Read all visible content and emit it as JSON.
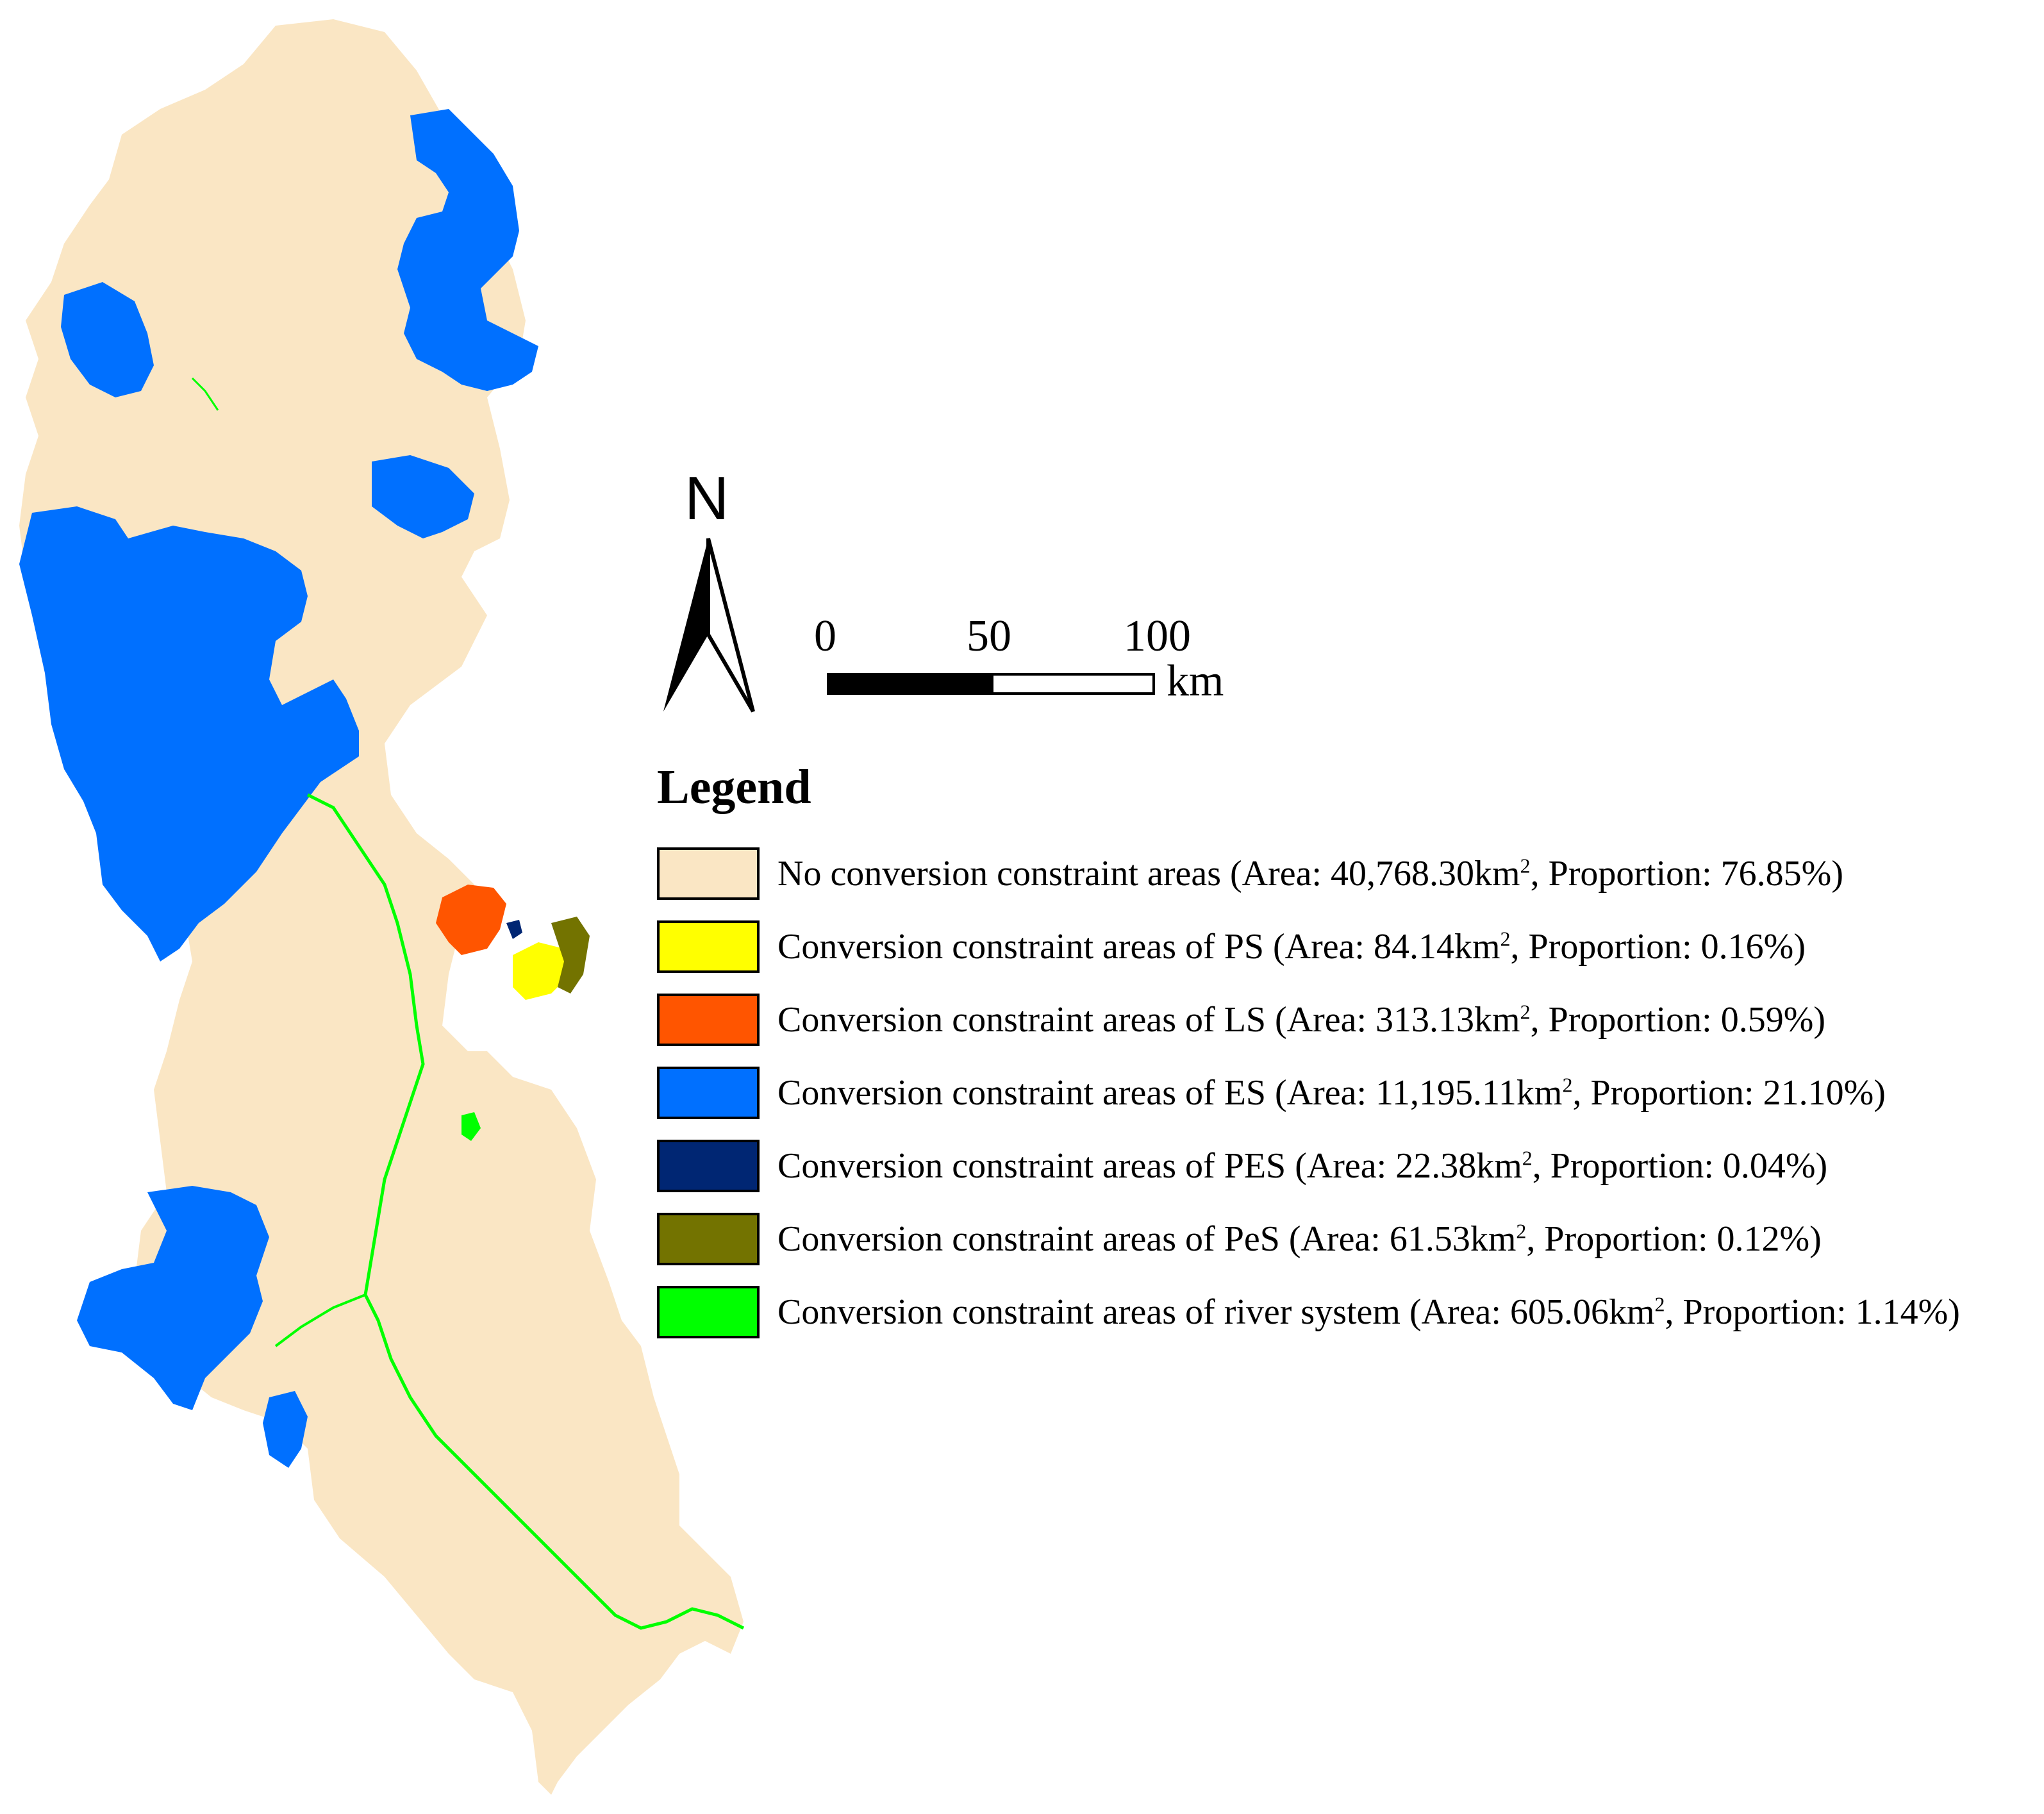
{
  "north_arrow": {
    "letter": "N"
  },
  "scale_bar": {
    "ticks": [
      "0",
      "50",
      "100"
    ],
    "unit": "km"
  },
  "legend": {
    "title": "Legend",
    "items": [
      {
        "color": "#FAE6C4",
        "label_pre": "No conversion constraint areas (Area: 40,768.30km",
        "sup": "2",
        "label_post": ", Proportion: 76.85%)"
      },
      {
        "color": "#FFFF00",
        "label_pre": "Conversion constraint areas of PS (Area: 84.14km",
        "sup": "2",
        "label_post": ", Proportion: 0.16%)"
      },
      {
        "color": "#FF5500",
        "label_pre": "Conversion constraint areas of LS (Area: 313.13km",
        "sup": "2",
        "label_post": ", Proportion: 0.59%)"
      },
      {
        "color": "#0070FF",
        "label_pre": "Conversion constraint areas of ES (Area: 11,195.11km",
        "sup": "2",
        "label_post": ", Proportion: 21.10%)"
      },
      {
        "color": "#002673",
        "label_pre": "Conversion constraint areas of PES (Area: 22.38km",
        "sup": "2",
        "label_post": ", Proportion: 0.04%)"
      },
      {
        "color": "#737300",
        "label_pre": "Conversion constraint areas of PeS (Area: 61.53km",
        "sup": "2",
        "label_post": ", Proportion: 0.12%)"
      },
      {
        "color": "#00FF00",
        "label_pre": "Conversion constraint areas of river system (Area: 605.06km",
        "sup": "2",
        "label_post": ", Proportion: 1.14%)"
      }
    ]
  }
}
